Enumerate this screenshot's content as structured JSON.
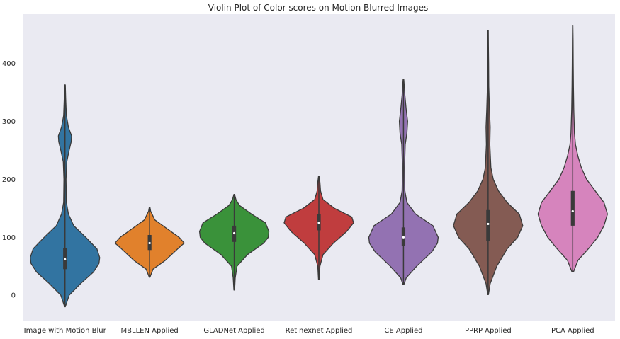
{
  "chart_data": {
    "type": "violin",
    "title": "Violin Plot of Color scores on Motion Blurred Images",
    "xlabel": "",
    "ylabel": "",
    "ylim": [
      -45,
      485
    ],
    "y_ticks": [
      0,
      100,
      200,
      300,
      400
    ],
    "grid": false,
    "colors": {
      "plot_background": "#EAEAF2",
      "outline": "#3A3A3A",
      "box": "#3A3A3A",
      "median": "#FFFFFF"
    },
    "categories": [
      "Image with Motion Blur",
      "MBLLEN Applied",
      "GLADNet Applied",
      "Retinexnet Applied",
      "CE Applied",
      "PPRP Applied",
      "PCA Applied"
    ],
    "series": [
      {
        "color": "#3274A1",
        "min": -20,
        "q1": 45,
        "median": 62,
        "q3": 82,
        "max": 363,
        "density": [
          [
            -20,
            0.01
          ],
          [
            0,
            0.12
          ],
          [
            20,
            0.45
          ],
          [
            40,
            0.82
          ],
          [
            55,
            0.98
          ],
          [
            65,
            1.0
          ],
          [
            80,
            0.92
          ],
          [
            100,
            0.6
          ],
          [
            120,
            0.25
          ],
          [
            140,
            0.1
          ],
          [
            160,
            0.04
          ],
          [
            200,
            0.03
          ],
          [
            230,
            0.05
          ],
          [
            250,
            0.12
          ],
          [
            265,
            0.18
          ],
          [
            275,
            0.19
          ],
          [
            290,
            0.1
          ],
          [
            310,
            0.04
          ],
          [
            340,
            0.02
          ],
          [
            363,
            0.01
          ]
        ]
      },
      {
        "color": "#E1812C",
        "min": 31,
        "q1": 78,
        "median": 90,
        "q3": 104,
        "max": 152,
        "density": [
          [
            31,
            0.01
          ],
          [
            45,
            0.1
          ],
          [
            60,
            0.45
          ],
          [
            75,
            0.72
          ],
          [
            85,
            0.9
          ],
          [
            90,
            1.0
          ],
          [
            100,
            0.85
          ],
          [
            115,
            0.5
          ],
          [
            130,
            0.15
          ],
          [
            145,
            0.03
          ],
          [
            152,
            0.01
          ]
        ]
      },
      {
        "color": "#3A923A",
        "min": 9,
        "q1": 92,
        "median": 107,
        "q3": 120,
        "max": 174,
        "density": [
          [
            9,
            0.01
          ],
          [
            30,
            0.03
          ],
          [
            50,
            0.08
          ],
          [
            70,
            0.38
          ],
          [
            90,
            0.85
          ],
          [
            100,
            0.98
          ],
          [
            110,
            1.0
          ],
          [
            125,
            0.9
          ],
          [
            140,
            0.5
          ],
          [
            155,
            0.15
          ],
          [
            165,
            0.05
          ],
          [
            174,
            0.01
          ]
        ]
      },
      {
        "color": "#C03D3E",
        "min": 27,
        "q1": 112,
        "median": 125,
        "q3": 140,
        "max": 205,
        "density": [
          [
            27,
            0.01
          ],
          [
            50,
            0.03
          ],
          [
            70,
            0.12
          ],
          [
            90,
            0.42
          ],
          [
            110,
            0.8
          ],
          [
            125,
            1.0
          ],
          [
            135,
            0.95
          ],
          [
            150,
            0.45
          ],
          [
            165,
            0.12
          ],
          [
            180,
            0.05
          ],
          [
            195,
            0.03
          ],
          [
            205,
            0.01
          ]
        ]
      },
      {
        "color": "#9372B2",
        "min": 18,
        "q1": 85,
        "median": 100,
        "q3": 117,
        "max": 372,
        "density": [
          [
            18,
            0.01
          ],
          [
            30,
            0.08
          ],
          [
            50,
            0.38
          ],
          [
            75,
            0.82
          ],
          [
            90,
            0.98
          ],
          [
            100,
            1.0
          ],
          [
            120,
            0.85
          ],
          [
            140,
            0.35
          ],
          [
            160,
            0.1
          ],
          [
            180,
            0.04
          ],
          [
            220,
            0.03
          ],
          [
            260,
            0.05
          ],
          [
            280,
            0.1
          ],
          [
            300,
            0.12
          ],
          [
            320,
            0.08
          ],
          [
            345,
            0.04
          ],
          [
            372,
            0.01
          ]
        ]
      },
      {
        "color": "#845B53",
        "min": 1,
        "q1": 93,
        "median": 123,
        "q3": 147,
        "max": 457,
        "density": [
          [
            1,
            0.01
          ],
          [
            20,
            0.06
          ],
          [
            50,
            0.25
          ],
          [
            80,
            0.55
          ],
          [
            100,
            0.85
          ],
          [
            120,
            1.0
          ],
          [
            140,
            0.9
          ],
          [
            160,
            0.55
          ],
          [
            180,
            0.3
          ],
          [
            200,
            0.15
          ],
          [
            220,
            0.08
          ],
          [
            260,
            0.05
          ],
          [
            290,
            0.06
          ],
          [
            320,
            0.04
          ],
          [
            360,
            0.02
          ],
          [
            400,
            0.015
          ],
          [
            430,
            0.01
          ],
          [
            457,
            0.005
          ]
        ]
      },
      {
        "color": "#D684BD",
        "min": 40,
        "q1": 120,
        "median": 145,
        "q3": 180,
        "max": 465,
        "density": [
          [
            40,
            0.02
          ],
          [
            60,
            0.15
          ],
          [
            80,
            0.45
          ],
          [
            100,
            0.72
          ],
          [
            120,
            0.9
          ],
          [
            140,
            1.0
          ],
          [
            160,
            0.9
          ],
          [
            180,
            0.65
          ],
          [
            200,
            0.4
          ],
          [
            220,
            0.25
          ],
          [
            240,
            0.15
          ],
          [
            260,
            0.08
          ],
          [
            280,
            0.05
          ],
          [
            320,
            0.03
          ],
          [
            360,
            0.02
          ],
          [
            400,
            0.015
          ],
          [
            440,
            0.01
          ],
          [
            465,
            0.005
          ]
        ]
      }
    ]
  }
}
